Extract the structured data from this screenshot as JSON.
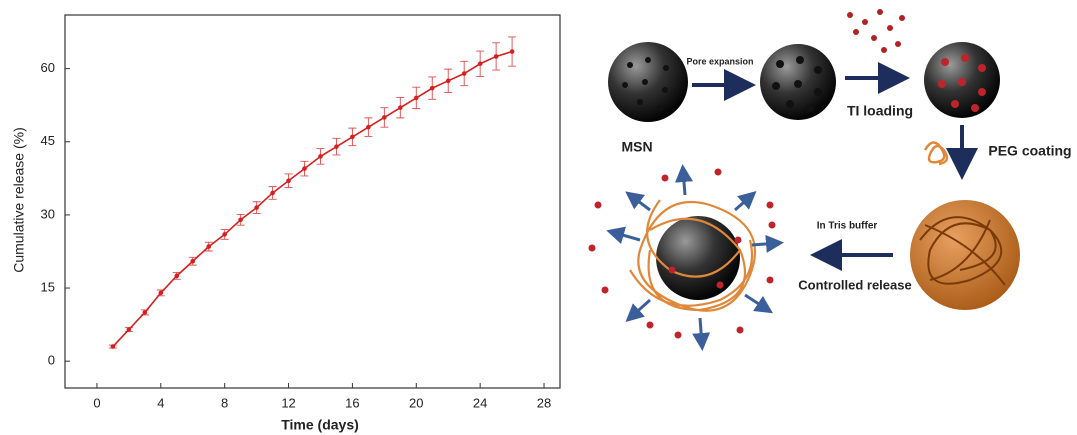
{
  "chart_data": {
    "type": "line",
    "x_label": "Time (days)",
    "y_label": "Cumulative release (%)",
    "x": [
      1,
      2,
      3,
      4,
      5,
      6,
      7,
      8,
      9,
      10,
      11,
      12,
      13,
      14,
      15,
      16,
      17,
      18,
      19,
      20,
      21,
      22,
      23,
      24,
      25,
      26
    ],
    "series": [
      {
        "color": "#d62020",
        "values": [
          3,
          6.5,
          10,
          14,
          17.5,
          20.5,
          23.5,
          26,
          29,
          31.5,
          34.5,
          37,
          39.5,
          42,
          44,
          46,
          48,
          50,
          52,
          54,
          56,
          57.5,
          59,
          61,
          62.5,
          63.5
        ],
        "errors": [
          0.3,
          0.4,
          0.5,
          0.6,
          0.7,
          0.8,
          0.9,
          1,
          1.1,
          1.2,
          1.3,
          1.4,
          1.5,
          1.6,
          1.7,
          1.8,
          1.9,
          2,
          2.1,
          2.2,
          2.3,
          2.4,
          2.5,
          2.6,
          2.8,
          3
        ]
      }
    ],
    "xlim": [
      -2,
      29
    ],
    "ylim": [
      -5.5,
      71
    ],
    "xticks": [
      0,
      4,
      8,
      12,
      16,
      20,
      24,
      28
    ],
    "yticks": [
      0,
      15,
      30,
      45,
      60
    ]
  },
  "diagram": {
    "pore_expansion": "Pore expansion",
    "ti_loading": "TI loading",
    "msn": "MSN",
    "peg_coating": "PEG coating",
    "tris_buffer": "In Tris buffer",
    "controlled_release": "Controlled release"
  }
}
